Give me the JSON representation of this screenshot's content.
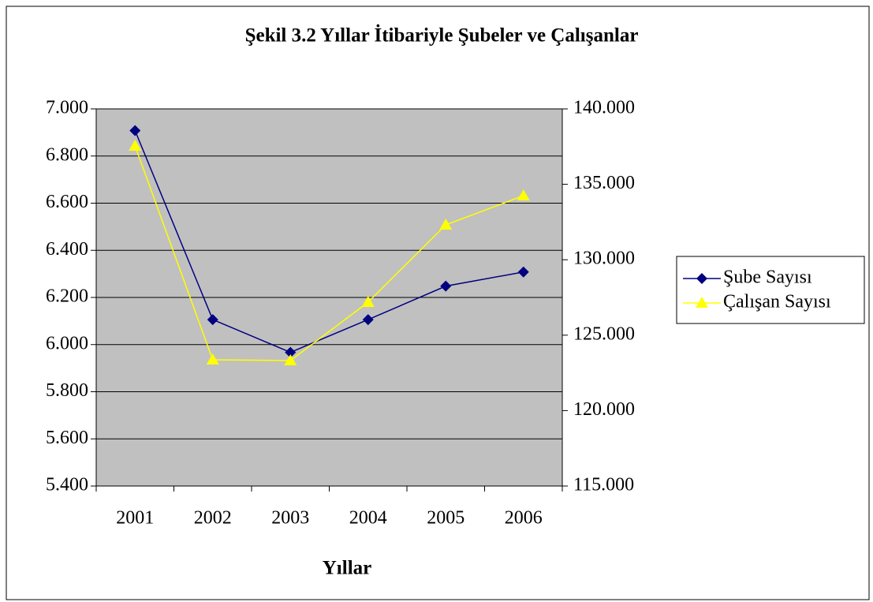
{
  "chart_data": {
    "type": "line",
    "title": "Şekil 3.2 Yıllar İtibariyle Şubeler ve Çalışanlar",
    "x_label": "Yıllar",
    "categories": [
      "2001",
      "2002",
      "2003",
      "2004",
      "2005",
      "2006"
    ],
    "series": [
      {
        "name": "Şube Sayısı",
        "color": "#000080",
        "marker": "diamond",
        "values": [
          6908,
          6106,
          5967,
          6106,
          6248,
          6308
        ]
      },
      {
        "name": "Çalışan Sayısı",
        "color": "#ffff00",
        "marker": "triangle",
        "axis": "y2",
        "values": [
          137542,
          123368,
          123316,
          127186,
          132312,
          134247
        ]
      }
    ],
    "ylim": [
      5400,
      7000
    ],
    "yticks": [
      {
        "value": 5400,
        "label": "5.400"
      },
      {
        "value": 5600,
        "label": "5.600"
      },
      {
        "value": 5800,
        "label": "5.800"
      },
      {
        "value": 6000,
        "label": "6.000"
      },
      {
        "value": 6200,
        "label": "6.200"
      },
      {
        "value": 6400,
        "label": "6.400"
      },
      {
        "value": 6600,
        "label": "6.600"
      },
      {
        "value": 6800,
        "label": "6.800"
      },
      {
        "value": 7000,
        "label": "7.000"
      }
    ],
    "y2lim": [
      115000,
      140000
    ],
    "y2ticks": [
      {
        "value": 115000,
        "label": "115.000"
      },
      {
        "value": 120000,
        "label": "120.000"
      },
      {
        "value": 125000,
        "label": "125.000"
      },
      {
        "value": 130000,
        "label": "130.000"
      },
      {
        "value": 135000,
        "label": "135.000"
      },
      {
        "value": 140000,
        "label": "140.000"
      }
    ],
    "grid": true,
    "plot_background": "#c0c0c0",
    "legend": "right"
  }
}
